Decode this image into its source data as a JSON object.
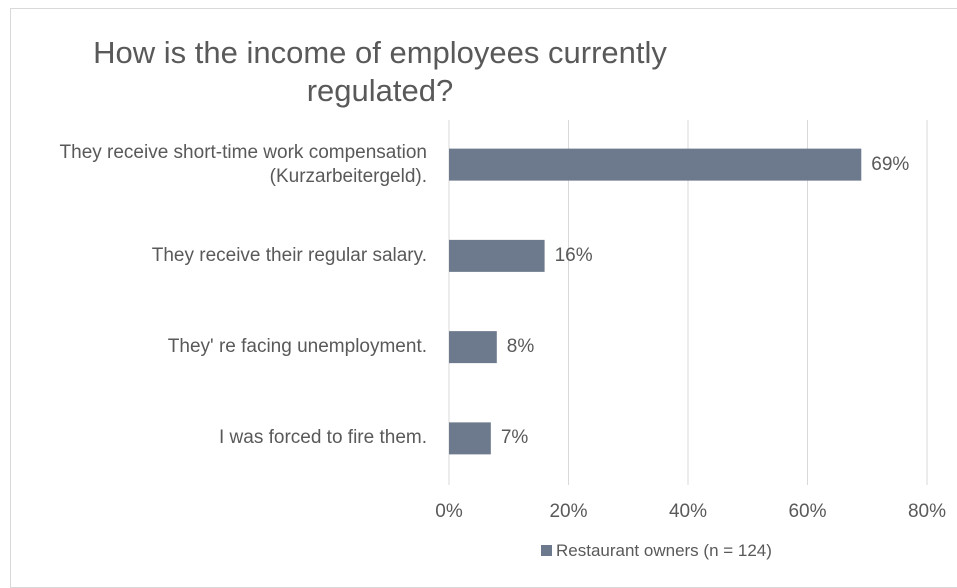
{
  "chart_data": {
    "type": "bar",
    "orientation": "horizontal",
    "title": "How is the income of employees currently regulated?",
    "categories": [
      "They receive short-time work compensation (Kurzarbeitergeld).",
      "They receive their regular salary.",
      "They' re facing unemployment.",
      "I was forced to fire them."
    ],
    "series": [
      {
        "name": "Restaurant owners (n = 124)",
        "color": "#6d7a8d",
        "values": [
          69,
          16,
          8,
          7
        ],
        "value_labels": [
          "69%",
          "16%",
          "8%",
          "7%"
        ]
      }
    ],
    "xlim": [
      0,
      80
    ],
    "xticks": [
      {
        "value": 0,
        "label": "0%"
      },
      {
        "value": 20,
        "label": "20%"
      },
      {
        "value": 40,
        "label": "40%"
      },
      {
        "value": 60,
        "label": "60%"
      },
      {
        "value": 80,
        "label": "80%"
      }
    ],
    "grid": true,
    "legend": "bottom"
  }
}
